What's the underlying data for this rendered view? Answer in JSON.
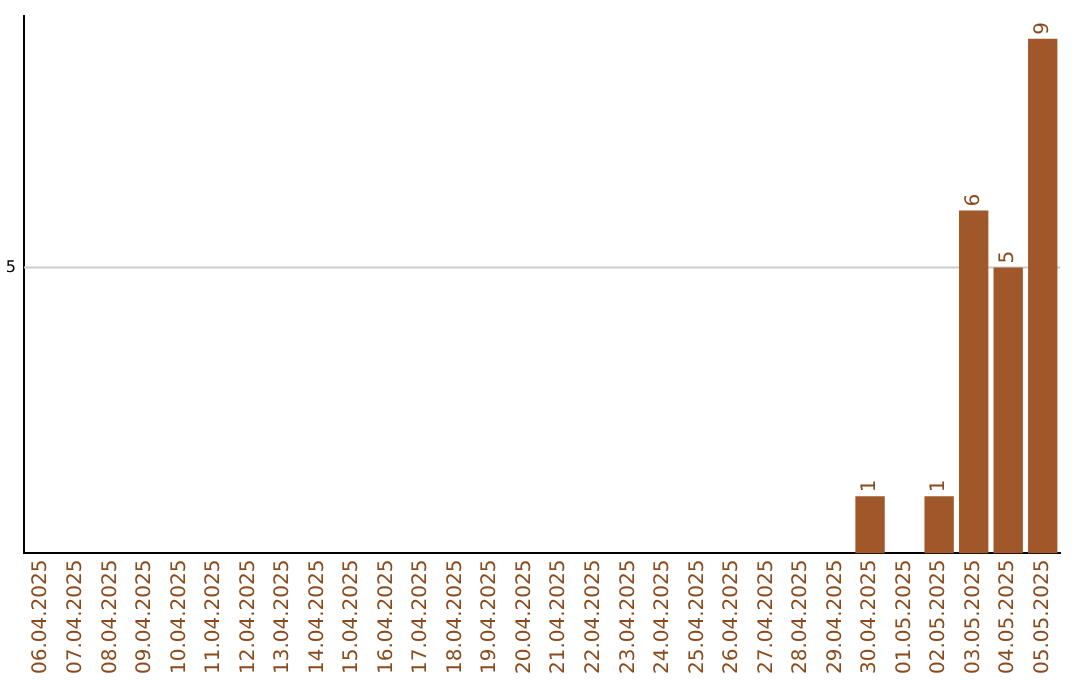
{
  "chart_data": {
    "type": "bar",
    "categories": [
      "06.04.2025",
      "07.04.2025",
      "08.04.2025",
      "09.04.2025",
      "10.04.2025",
      "11.04.2025",
      "12.04.2025",
      "13.04.2025",
      "14.04.2025",
      "15.04.2025",
      "16.04.2025",
      "17.04.2025",
      "18.04.2025",
      "19.04.2025",
      "20.04.2025",
      "21.04.2025",
      "22.04.2025",
      "23.04.2025",
      "24.04.2025",
      "25.04.2025",
      "26.04.2025",
      "27.04.2025",
      "28.04.2025",
      "29.04.2025",
      "30.04.2025",
      "01.05.2025",
      "02.05.2025",
      "03.05.2025",
      "04.05.2025",
      "05.05.2025"
    ],
    "values": [
      null,
      null,
      null,
      null,
      null,
      null,
      null,
      null,
      null,
      null,
      null,
      null,
      null,
      null,
      null,
      null,
      null,
      null,
      null,
      null,
      null,
      null,
      null,
      null,
      1,
      null,
      1,
      6,
      5,
      9
    ],
    "data_labels": true,
    "color": "#a0572a",
    "ylim": [
      0,
      9.4
    ],
    "ref_lines": [
      {
        "axis": "y",
        "value": 5,
        "label": "5",
        "color": "#cccccc"
      }
    ],
    "legend": false
  }
}
